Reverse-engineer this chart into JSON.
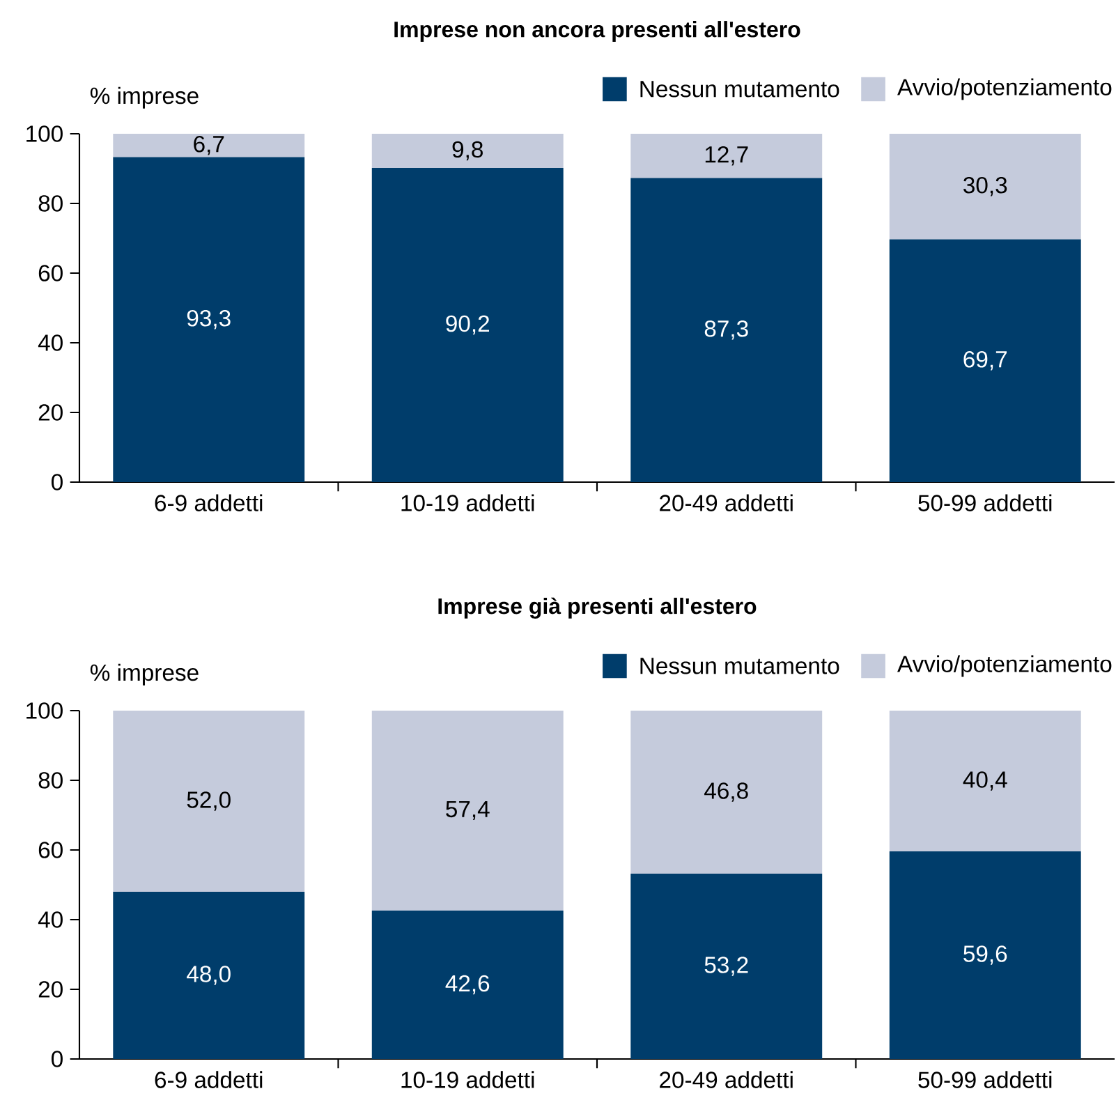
{
  "chart_data": [
    {
      "type": "bar",
      "stacked": true,
      "title": "Imprese non ancora presenti all'estero",
      "ylabel": "% imprese",
      "categories": [
        "6-9 addetti",
        "10-19 addetti",
        "20-49 addetti",
        "50-99 addetti"
      ],
      "series": [
        {
          "name": "Nessun mutamento",
          "color": "#003d6b",
          "values": [
            93.3,
            90.2,
            87.3,
            69.7
          ],
          "value_labels": [
            "93,3",
            "90,2",
            "87,3",
            "69,7"
          ]
        },
        {
          "name": "Avvio/potenziamento",
          "color": "#c5cbdc",
          "values": [
            6.7,
            9.8,
            12.7,
            30.3
          ],
          "value_labels": [
            "6,7",
            "9,8",
            "12,7",
            "30,3"
          ]
        }
      ],
      "ylim": [
        0,
        100
      ],
      "yticks": [
        0,
        20,
        40,
        60,
        80,
        100
      ],
      "legend": "top right"
    },
    {
      "type": "bar",
      "stacked": true,
      "title": "Imprese già presenti all'estero",
      "ylabel": "% imprese",
      "categories": [
        "6-9 addetti",
        "10-19 addetti",
        "20-49 addetti",
        "50-99 addetti"
      ],
      "series": [
        {
          "name": "Nessun mutamento",
          "color": "#003d6b",
          "values": [
            48.0,
            42.6,
            53.2,
            59.6
          ],
          "value_labels": [
            "48,0",
            "42,6",
            "53,2",
            "59,6"
          ]
        },
        {
          "name": "Avvio/potenziamento",
          "color": "#c5cbdc",
          "values": [
            52.0,
            57.4,
            46.8,
            40.4
          ],
          "value_labels": [
            "52,0",
            "57,4",
            "46,8",
            "40,4"
          ]
        }
      ],
      "ylim": [
        0,
        100
      ],
      "yticks": [
        0,
        20,
        40,
        60,
        80,
        100
      ],
      "legend": "top right"
    }
  ]
}
